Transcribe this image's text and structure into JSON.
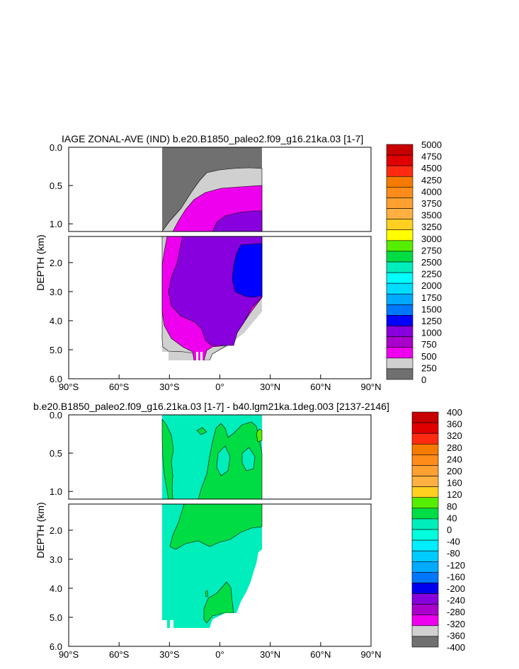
{
  "chart_data": [
    {
      "type": "heatmap",
      "title": "IAGE ZONAL-AVE (IND) b.e20.B1850_paleo2.f09_g16.21ka.03 [1-7]",
      "ylabel": "DEPTH (km)",
      "x_ticks": [
        "90°S",
        "60°S",
        "30°S",
        "0°",
        "30°N",
        "60°N",
        "90°N"
      ],
      "x_values": [
        -90,
        -60,
        -30,
        0,
        30,
        60,
        90
      ],
      "y_ticks_upper": [
        "0.0",
        "0.5",
        "1.0"
      ],
      "y_ticks_lower": [
        "2.0",
        "3.0",
        "4.0",
        "5.0",
        "6.0"
      ],
      "y_values_upper": [
        0.0,
        0.5,
        1.0
      ],
      "y_values_lower": [
        2.0,
        3.0,
        4.0,
        5.0,
        6.0
      ],
      "ylim": [
        6.0,
        0.0
      ],
      "xlim": [
        -90,
        90
      ],
      "data_extent_lat": [
        -34,
        25
      ],
      "colorbar_labels": [
        "5000",
        "4750",
        "4500",
        "4250",
        "4000",
        "3750",
        "3500",
        "3250",
        "3000",
        "2750",
        "2500",
        "2250",
        "2000",
        "1750",
        "1500",
        "1250",
        "1000",
        "750",
        "500",
        "250",
        "0"
      ],
      "colorbar_colors": [
        "#c80000",
        "#e00000",
        "#ff2a10",
        "#f57a00",
        "#ff8c1a",
        "#ffa030",
        "#ffb040",
        "#ffd020",
        "#ffff00",
        "#55ee00",
        "#00dd44",
        "#00eebb",
        "#00ffff",
        "#00ddff",
        "#00aaff",
        "#0077ff",
        "#0000ff",
        "#8800dd",
        "#aa00cc",
        "#ee00ee",
        "#d0d0d0",
        "#707070"
      ]
    },
    {
      "type": "heatmap",
      "title": "b.e20.B1850_paleo2.f09_g16.21ka.03 [1-7] - b40.lgm21ka.1deg.003 [2137-2146]",
      "ylabel": "DEPTH (km)",
      "x_ticks": [
        "90°S",
        "60°S",
        "30°S",
        "0°",
        "30°N",
        "60°N",
        "90°N"
      ],
      "x_values": [
        -90,
        -60,
        -30,
        0,
        30,
        60,
        90
      ],
      "y_ticks_upper": [
        "0.0",
        "0.5",
        "1.0"
      ],
      "y_ticks_lower": [
        "2.0",
        "3.0",
        "4.0",
        "5.0",
        "6.0"
      ],
      "y_values_upper": [
        0.0,
        0.5,
        1.0
      ],
      "y_values_lower": [
        2.0,
        3.0,
        4.0,
        5.0,
        6.0
      ],
      "ylim": [
        6.0,
        0.0
      ],
      "xlim": [
        -90,
        90
      ],
      "data_extent_lat": [
        -34,
        25
      ],
      "colorbar_labels": [
        "400",
        "360",
        "320",
        "280",
        "240",
        "200",
        "160",
        "120",
        "80",
        "40",
        "0",
        "-40",
        "-80",
        "-120",
        "-160",
        "-200",
        "-240",
        "-280",
        "-320",
        "-360",
        "-400"
      ],
      "colorbar_colors": [
        "#c80000",
        "#e00000",
        "#ff2a10",
        "#f57a00",
        "#ff8c1a",
        "#ffa030",
        "#ffb040",
        "#ffd020",
        "#55ee00",
        "#00dd44",
        "#00eebb",
        "#00ffdd",
        "#00eeff",
        "#00ccff",
        "#00aaff",
        "#0077ff",
        "#0000ee",
        "#8800dd",
        "#aa00cc",
        "#ee00ee",
        "#d0d0d0",
        "#707070"
      ]
    }
  ]
}
